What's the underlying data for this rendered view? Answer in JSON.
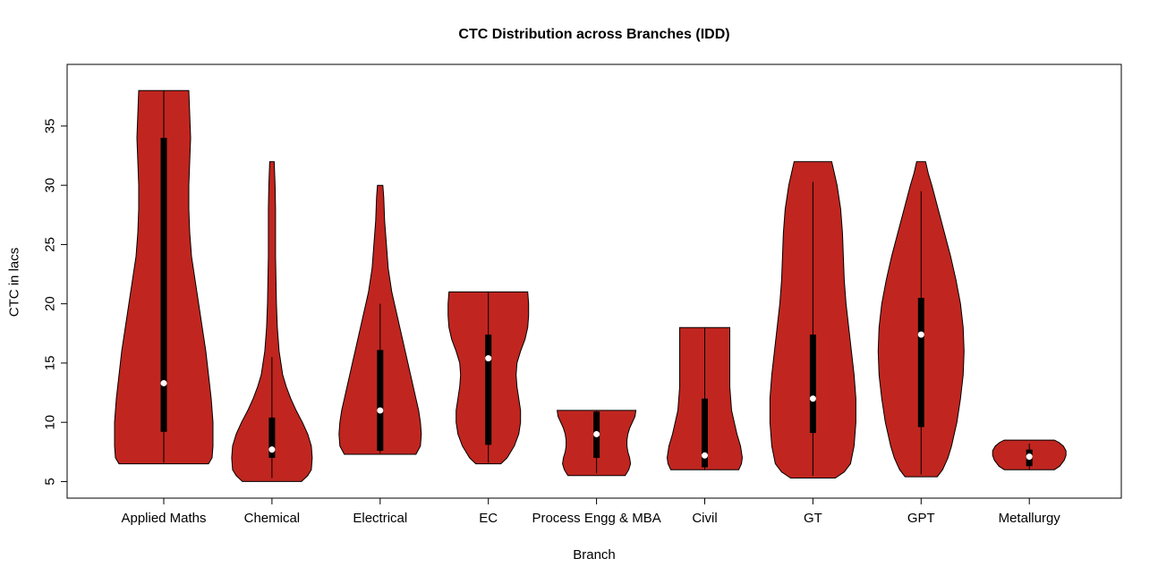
{
  "chart_data": {
    "type": "violin",
    "title": "CTC Distribution across Branches (IDD)",
    "xlabel": "Branch",
    "ylabel": "CTC in lacs",
    "ylim": [
      3.6,
      40.2
    ],
    "yticks": [
      5,
      10,
      15,
      20,
      25,
      30,
      35
    ],
    "categories": [
      "Applied Maths",
      "Chemical",
      "Electrical",
      "EC",
      "Process Engg & MBA",
      "Civil",
      "GT",
      "GPT",
      "Metallurgy"
    ],
    "colors": {
      "violin_fill": "#C0261F",
      "outline": "#000000",
      "box": "#000000",
      "median": "#FFFFFF",
      "background": "#FFFFFF",
      "text": "#000000"
    },
    "legend": "none",
    "grid": "off",
    "series": [
      {
        "name": "Applied Maths",
        "min": 6.5,
        "max": 38,
        "q1": 9.2,
        "q3": 34,
        "median": 13.3,
        "whisker_low": 6.6,
        "whisker_high": 38,
        "outline": [
          [
            6.5,
            50
          ],
          [
            7,
            54
          ],
          [
            8,
            55
          ],
          [
            10,
            55
          ],
          [
            12,
            53
          ],
          [
            14,
            50
          ],
          [
            16,
            47
          ],
          [
            18,
            43
          ],
          [
            20,
            39
          ],
          [
            22,
            35
          ],
          [
            24,
            31
          ],
          [
            26,
            29
          ],
          [
            28,
            28
          ],
          [
            30,
            28
          ],
          [
            32,
            29
          ],
          [
            34,
            30
          ],
          [
            36,
            29
          ],
          [
            38,
            28
          ]
        ]
      },
      {
        "name": "Chemical",
        "min": 5,
        "max": 32,
        "q1": 7.0,
        "q3": 10.4,
        "median": 7.7,
        "whisker_low": 5.3,
        "whisker_high": 15.5,
        "outline": [
          [
            5,
            33
          ],
          [
            5.5,
            40
          ],
          [
            6,
            44
          ],
          [
            7,
            45
          ],
          [
            8,
            44
          ],
          [
            9,
            40
          ],
          [
            10,
            34
          ],
          [
            11,
            27
          ],
          [
            12,
            21
          ],
          [
            13,
            16
          ],
          [
            14,
            12
          ],
          [
            15,
            10
          ],
          [
            16,
            8
          ],
          [
            18,
            6
          ],
          [
            20,
            5
          ],
          [
            22,
            4.5
          ],
          [
            24,
            4
          ],
          [
            26,
            4
          ],
          [
            28,
            4
          ],
          [
            30,
            3.5
          ],
          [
            31,
            3
          ],
          [
            32,
            2.5
          ]
        ]
      },
      {
        "name": "Electrical",
        "min": 7.3,
        "max": 30,
        "q1": 7.6,
        "q3": 16.1,
        "median": 11.0,
        "whisker_low": 7.4,
        "whisker_high": 20.0,
        "outline": [
          [
            7.3,
            40
          ],
          [
            8,
            45
          ],
          [
            9,
            46
          ],
          [
            10,
            45
          ],
          [
            11,
            43
          ],
          [
            12,
            40
          ],
          [
            13,
            37
          ],
          [
            14,
            34
          ],
          [
            15,
            31
          ],
          [
            16,
            28
          ],
          [
            17,
            25
          ],
          [
            18,
            22
          ],
          [
            19,
            19
          ],
          [
            20,
            16
          ],
          [
            21,
            13
          ],
          [
            22,
            11
          ],
          [
            23,
            9
          ],
          [
            24,
            8
          ],
          [
            25,
            7
          ],
          [
            26,
            6
          ],
          [
            27,
            5
          ],
          [
            28,
            4.5
          ],
          [
            29,
            4
          ],
          [
            30,
            3
          ]
        ]
      },
      {
        "name": "EC",
        "min": 6.5,
        "max": 21,
        "q1": 8.1,
        "q3": 17.4,
        "median": 15.4,
        "whisker_low": 6.6,
        "whisker_high": 21.0,
        "outline": [
          [
            6.5,
            14
          ],
          [
            7,
            21
          ],
          [
            8,
            29
          ],
          [
            9,
            34
          ],
          [
            10,
            36
          ],
          [
            11,
            36
          ],
          [
            12,
            34
          ],
          [
            13,
            32
          ],
          [
            14,
            31
          ],
          [
            15,
            32
          ],
          [
            16,
            36
          ],
          [
            17,
            41
          ],
          [
            18,
            44
          ],
          [
            19,
            45
          ],
          [
            20,
            45
          ],
          [
            21,
            44
          ]
        ]
      },
      {
        "name": "Process Engg & MBA",
        "min": 5.5,
        "max": 11,
        "q1": 7.0,
        "q3": 10.9,
        "median": 9.0,
        "whisker_low": 5.7,
        "whisker_high": 11.0,
        "outline": [
          [
            5.5,
            32
          ],
          [
            6,
            36
          ],
          [
            6.5,
            38
          ],
          [
            7,
            37
          ],
          [
            7.5,
            35
          ],
          [
            8,
            34
          ],
          [
            8.5,
            34
          ],
          [
            9,
            35
          ],
          [
            9.5,
            37
          ],
          [
            10,
            40
          ],
          [
            10.5,
            43
          ],
          [
            11,
            44
          ]
        ]
      },
      {
        "name": "Civil",
        "min": 6,
        "max": 18,
        "q1": 6.2,
        "q3": 12.0,
        "median": 7.2,
        "whisker_low": 6.0,
        "whisker_high": 18.0,
        "outline": [
          [
            6,
            38
          ],
          [
            6.5,
            41
          ],
          [
            7,
            42
          ],
          [
            8,
            40
          ],
          [
            9,
            36
          ],
          [
            10,
            33
          ],
          [
            11,
            30
          ],
          [
            12,
            29
          ],
          [
            13,
            28
          ],
          [
            14,
            28
          ],
          [
            15,
            28
          ],
          [
            16,
            28
          ],
          [
            17,
            28
          ],
          [
            18,
            28
          ]
        ]
      },
      {
        "name": "GT",
        "min": 5.3,
        "max": 32,
        "q1": 9.1,
        "q3": 17.4,
        "median": 12.0,
        "whisker_low": 5.5,
        "whisker_high": 30.3,
        "outline": [
          [
            5.3,
            25
          ],
          [
            5.8,
            35
          ],
          [
            6.5,
            42
          ],
          [
            8,
            46
          ],
          [
            10,
            48
          ],
          [
            12,
            48
          ],
          [
            14,
            46
          ],
          [
            16,
            43
          ],
          [
            18,
            40
          ],
          [
            20,
            37
          ],
          [
            22,
            35
          ],
          [
            24,
            34
          ],
          [
            26,
            33
          ],
          [
            28,
            31
          ],
          [
            30,
            27
          ],
          [
            31,
            24
          ],
          [
            32,
            21
          ]
        ]
      },
      {
        "name": "GPT",
        "min": 5.4,
        "max": 32,
        "q1": 9.6,
        "q3": 20.5,
        "median": 17.4,
        "whisker_low": 5.6,
        "whisker_high": 29.5,
        "outline": [
          [
            5.4,
            18
          ],
          [
            6,
            24
          ],
          [
            7,
            30
          ],
          [
            8,
            34
          ],
          [
            9,
            37
          ],
          [
            10,
            40
          ],
          [
            12,
            44
          ],
          [
            14,
            47
          ],
          [
            16,
            48
          ],
          [
            18,
            47
          ],
          [
            20,
            44
          ],
          [
            22,
            39
          ],
          [
            24,
            33
          ],
          [
            26,
            26
          ],
          [
            28,
            19
          ],
          [
            30,
            12
          ],
          [
            31,
            8
          ],
          [
            32,
            5
          ]
        ]
      },
      {
        "name": "Metallurgy",
        "min": 6,
        "max": 8.5,
        "q1": 6.3,
        "q3": 7.7,
        "median": 7.1,
        "whisker_low": 6.0,
        "whisker_high": 8.2,
        "outline": [
          [
            6,
            28
          ],
          [
            6.3,
            34
          ],
          [
            6.8,
            39
          ],
          [
            7.2,
            41
          ],
          [
            7.6,
            41
          ],
          [
            8,
            38
          ],
          [
            8.3,
            33
          ],
          [
            8.5,
            28
          ]
        ]
      }
    ]
  }
}
